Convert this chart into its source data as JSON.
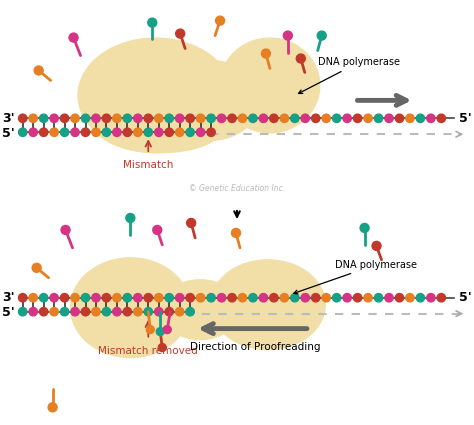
{
  "bg_color": "#ffffff",
  "enzyme_color": "#f2dfa8",
  "colors_dna": [
    "#c0392b",
    "#e67e22",
    "#16a085",
    "#d63384"
  ],
  "teal": "#16a085",
  "red": "#c0392b",
  "orange": "#e67e22",
  "pink": "#d63384",
  "dark_red": "#8B1a1a",
  "gray": "#888888",
  "dark_gray": "#555555",
  "connector_color": "#333333",
  "dash_color": "#bbbbbb",
  "label_3prime": "3'",
  "label_5prime": "5'",
  "mismatch_label": "Mismatch",
  "mismatch_removed_label": "Mismatch removed",
  "proofreading_label": "Direction of Proofreading",
  "dna_polymerase_label": "DNA polymerase",
  "copyright_label": "© Genetic Education Inc."
}
